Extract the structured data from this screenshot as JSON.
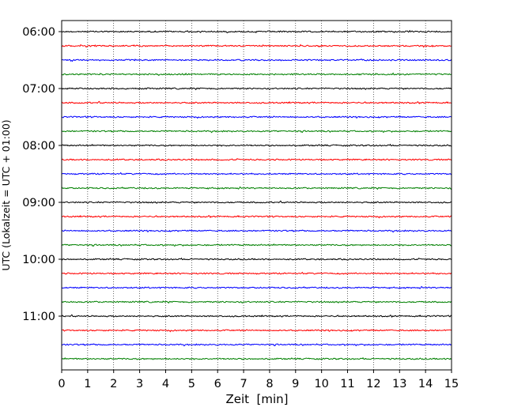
{
  "chart_data": {
    "type": "line",
    "title": "",
    "xlabel": "Zeit  [min]",
    "ylabel": "UTC (Lokalzeit = UTC + 01:00)",
    "xlim": [
      0,
      15
    ],
    "x_ticks": [
      "0",
      "1",
      "2",
      "3",
      "4",
      "5",
      "6",
      "7",
      "8",
      "9",
      "10",
      "11",
      "12",
      "13",
      "14",
      "15"
    ],
    "y_ticks": [
      "06:00",
      "07:00",
      "08:00",
      "09:00",
      "10:00",
      "11:00"
    ],
    "vertical_grid": "dotted",
    "trace_colors": [
      "#000000",
      "#ff0000",
      "#0000ff",
      "#008000"
    ],
    "series": [
      {
        "start": "06:00",
        "color": "#000000"
      },
      {
        "start": "06:15",
        "color": "#ff0000"
      },
      {
        "start": "06:30",
        "color": "#0000ff"
      },
      {
        "start": "06:45",
        "color": "#008000"
      },
      {
        "start": "07:00",
        "color": "#000000"
      },
      {
        "start": "07:15",
        "color": "#ff0000"
      },
      {
        "start": "07:30",
        "color": "#0000ff"
      },
      {
        "start": "07:45",
        "color": "#008000"
      },
      {
        "start": "08:00",
        "color": "#000000"
      },
      {
        "start": "08:15",
        "color": "#ff0000"
      },
      {
        "start": "08:30",
        "color": "#0000ff"
      },
      {
        "start": "08:45",
        "color": "#008000"
      },
      {
        "start": "09:00",
        "color": "#000000"
      },
      {
        "start": "09:15",
        "color": "#ff0000"
      },
      {
        "start": "09:30",
        "color": "#0000ff"
      },
      {
        "start": "09:45",
        "color": "#008000"
      },
      {
        "start": "10:00",
        "color": "#000000"
      },
      {
        "start": "10:15",
        "color": "#ff0000"
      },
      {
        "start": "10:30",
        "color": "#0000ff"
      },
      {
        "start": "10:45",
        "color": "#008000"
      },
      {
        "start": "11:00",
        "color": "#000000"
      },
      {
        "start": "11:15",
        "color": "#ff0000"
      },
      {
        "start": "11:30",
        "color": "#0000ff"
      },
      {
        "start": "11:45",
        "color": "#008000"
      }
    ]
  }
}
